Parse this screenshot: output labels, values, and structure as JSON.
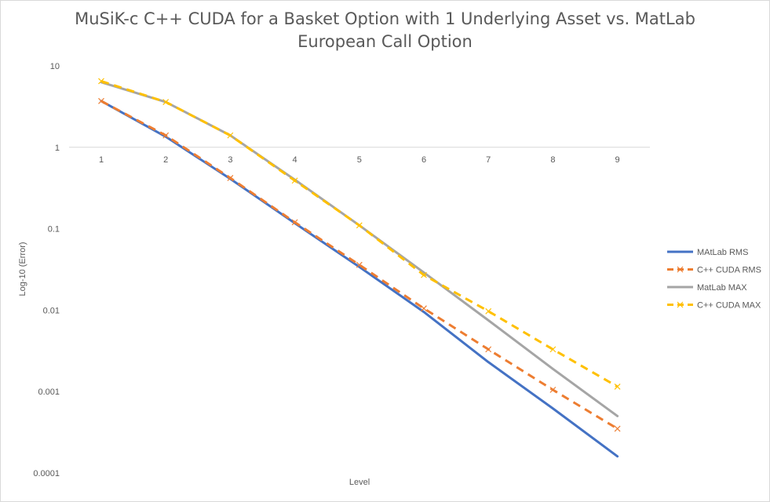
{
  "chart_data": {
    "type": "line",
    "title_line1": "MuSiK-c C++ CUDA for a Basket Option with 1 Underlying Asset vs. MatLab",
    "title_line2": "European Call Option",
    "xlabel": "Level",
    "ylabel": "Log-10 (Error)",
    "y_scale": "log10",
    "ylim": [
      0.0001,
      10
    ],
    "y_ticks": [
      "10",
      "1",
      "0.1",
      "0.01",
      "0.001",
      "0.0001"
    ],
    "y_tick_values": [
      10,
      1,
      0.1,
      0.01,
      0.001,
      0.0001
    ],
    "categories": [
      "1",
      "2",
      "3",
      "4",
      "5",
      "6",
      "7",
      "8",
      "9"
    ],
    "x_axis_crosses_at": 1,
    "grid": false,
    "legend_position": "right",
    "series": [
      {
        "name": "MAtLab RMS",
        "color": "#4472c4",
        "dash": "solid",
        "marker": "none",
        "values": [
          3.7,
          1.35,
          0.41,
          0.117,
          0.034,
          0.0095,
          0.0023,
          0.00062,
          0.00016
        ]
      },
      {
        "name": "C++ CUDA RMS",
        "color": "#ed7d31",
        "dash": "dashed",
        "marker": "x",
        "values": [
          3.7,
          1.4,
          0.42,
          0.12,
          0.036,
          0.0105,
          0.0033,
          0.00105,
          0.00035
        ]
      },
      {
        "name": "MatLab MAX",
        "color": "#a5a5a5",
        "dash": "solid",
        "marker": "none",
        "values": [
          6.3,
          3.6,
          1.4,
          0.4,
          0.11,
          0.029,
          0.0075,
          0.0019,
          0.0005
        ]
      },
      {
        "name": "C++ CUDA MAX",
        "color": "#ffc000",
        "dash": "dashed",
        "marker": "x",
        "values": [
          6.5,
          3.6,
          1.4,
          0.39,
          0.11,
          0.027,
          0.0097,
          0.0033,
          0.00115
        ]
      }
    ]
  }
}
